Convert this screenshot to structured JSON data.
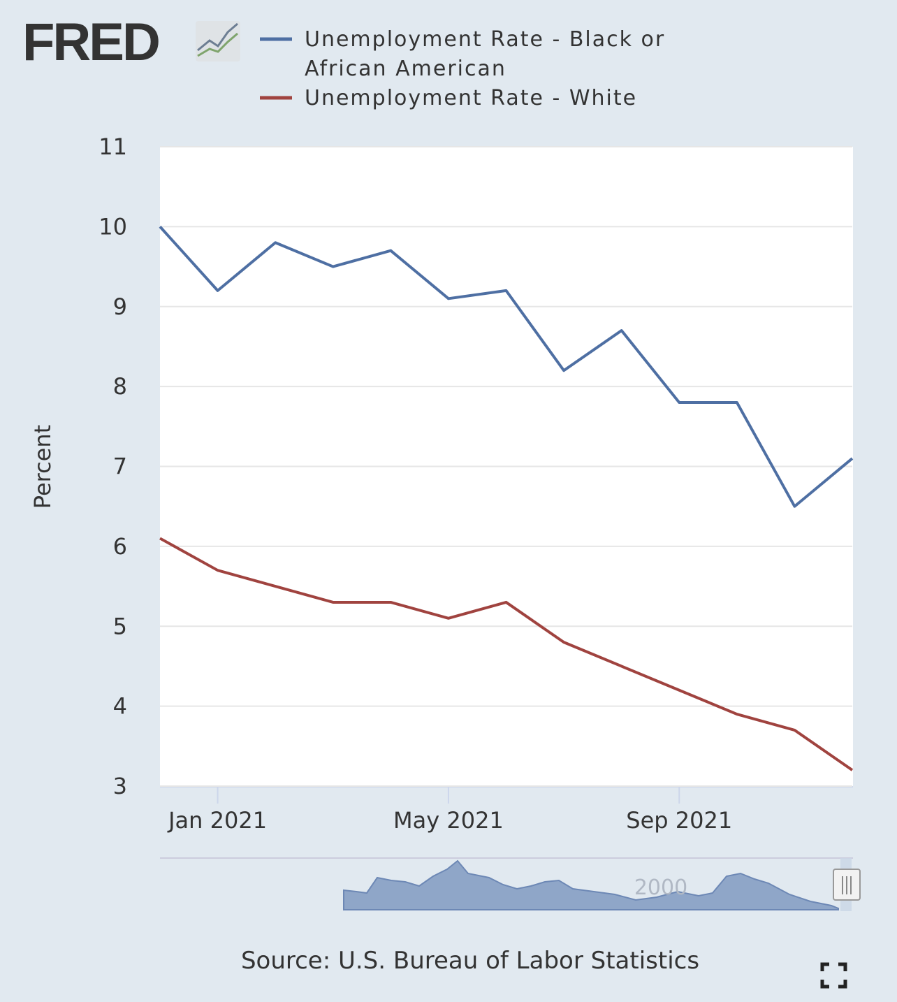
{
  "chart_data": {
    "type": "line",
    "logo": "FRED",
    "ylabel": "Percent",
    "source": "Source: U.S. Bureau of Labor Statistics",
    "navigator_label": "2000",
    "x": [
      "2020-12",
      "2021-01",
      "2021-02",
      "2021-03",
      "2021-04",
      "2021-05",
      "2021-06",
      "2021-07",
      "2021-08",
      "2021-09",
      "2021-10",
      "2021-11",
      "2021-12"
    ],
    "xlim": [
      "2020-12",
      "2021-12"
    ],
    "xticks": [
      {
        "value": "2021-01",
        "label": "Jan 2021"
      },
      {
        "value": "2021-05",
        "label": "May 2021"
      },
      {
        "value": "2021-09",
        "label": "Sep 2021"
      }
    ],
    "ylim": [
      3,
      11
    ],
    "yticks": [
      3,
      4,
      5,
      6,
      7,
      8,
      9,
      10,
      11
    ],
    "grid": true,
    "series": [
      {
        "name": [
          "Unemployment Rate - Black or",
          "African American"
        ],
        "color": "#4e6fa3",
        "values": [
          10.0,
          9.2,
          9.8,
          9.5,
          9.7,
          9.1,
          9.2,
          8.2,
          8.7,
          7.8,
          7.8,
          6.5,
          7.1
        ]
      },
      {
        "name": [
          "Unemployment Rate - White"
        ],
        "color": "#a0433f",
        "values": [
          6.1,
          5.7,
          5.5,
          5.3,
          5.3,
          5.1,
          5.3,
          4.8,
          4.5,
          4.2,
          3.9,
          3.7,
          3.2
        ]
      }
    ]
  }
}
